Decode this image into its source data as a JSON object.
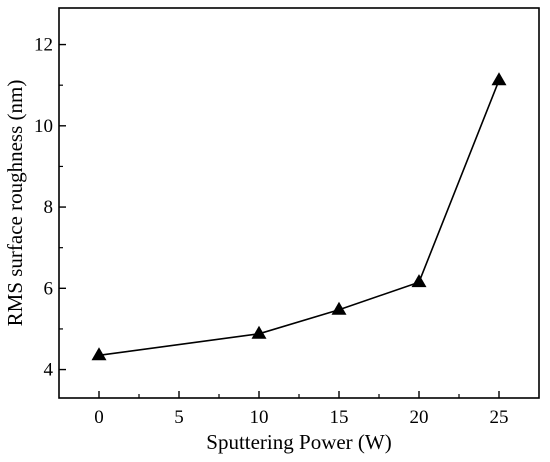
{
  "chart_data": {
    "type": "line",
    "title": "",
    "xlabel": "Sputtering Power (W)",
    "ylabel": "RMS surface roughness (nm)",
    "xlim": [
      -2.5,
      27.5
    ],
    "ylim": [
      3.3,
      12.9
    ],
    "xticks": [
      0,
      5,
      10,
      15,
      20,
      25
    ],
    "yticks": [
      4,
      6,
      8,
      10,
      12
    ],
    "grid": false,
    "legend": "none",
    "marker": "triangle",
    "color": "#000000",
    "series": [
      {
        "x": [
          0,
          10,
          15,
          20,
          25
        ],
        "y": [
          4.35,
          4.88,
          5.47,
          6.15,
          11.12
        ]
      }
    ]
  }
}
